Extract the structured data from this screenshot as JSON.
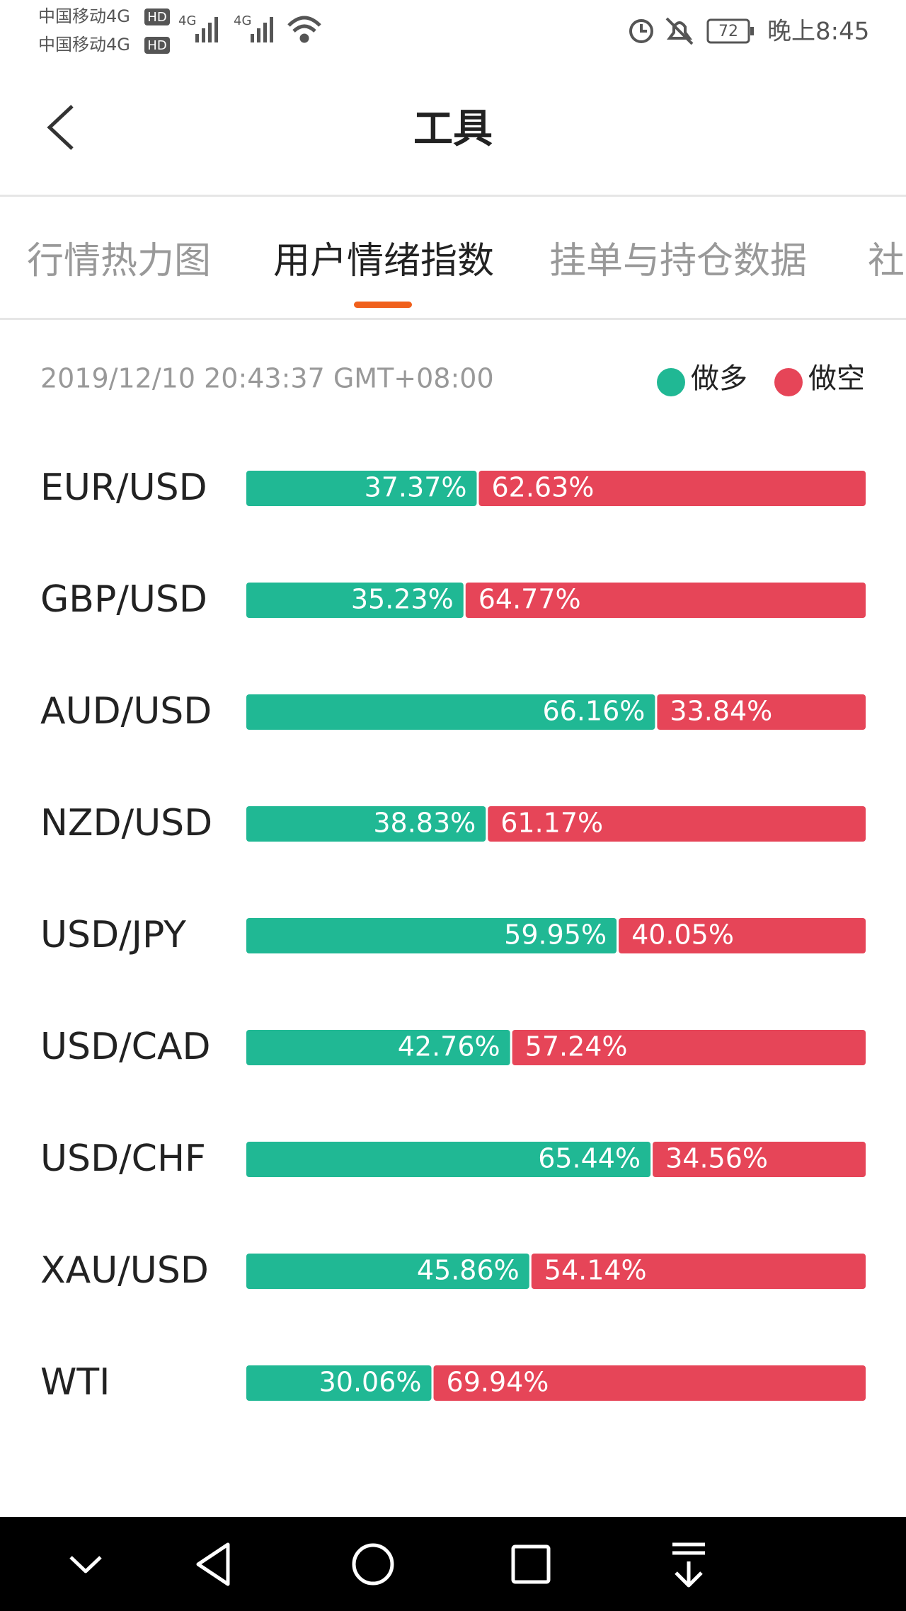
{
  "status_bar": {
    "carriers": [
      "中国移动4G",
      "中国移动4G"
    ],
    "badge": "HD",
    "network": "4G",
    "battery": "72",
    "time": "晚上8:45"
  },
  "header": {
    "title": "工具"
  },
  "tabs": [
    "行情热力图",
    "用户情绪指数",
    "挂单与持仓数据",
    "社"
  ],
  "chart_data": {
    "type": "bar",
    "orientation": "horizontal",
    "stacked": true,
    "subtitle": "2019/12/10 20:43:37 GMT+08:00",
    "categories": [
      "EUR/USD",
      "GBP/USD",
      "AUD/USD",
      "NZD/USD",
      "USD/JPY",
      "USD/CAD",
      "USD/CHF",
      "XAU/USD",
      "WTI"
    ],
    "legend": "top-right",
    "series": [
      {
        "name": "做多",
        "color": "#20b894",
        "values": [
          37.37,
          35.23,
          66.16,
          38.83,
          59.95,
          42.76,
          65.44,
          45.86,
          30.06
        ],
        "value_labels": [
          "37.37%",
          "35.23%",
          "66.16%",
          "38.83%",
          "59.95%",
          "42.76%",
          "65.44%",
          "45.86%",
          "30.06%"
        ]
      },
      {
        "name": "做空",
        "color": "#e64558",
        "values": [
          62.63,
          64.77,
          33.84,
          61.17,
          40.05,
          57.24,
          34.56,
          54.14,
          69.94
        ],
        "value_labels": [
          "62.63%",
          "64.77%",
          "33.84%",
          "61.17%",
          "40.05%",
          "57.24%",
          "34.56%",
          "54.14%",
          "69.94%"
        ]
      }
    ]
  }
}
